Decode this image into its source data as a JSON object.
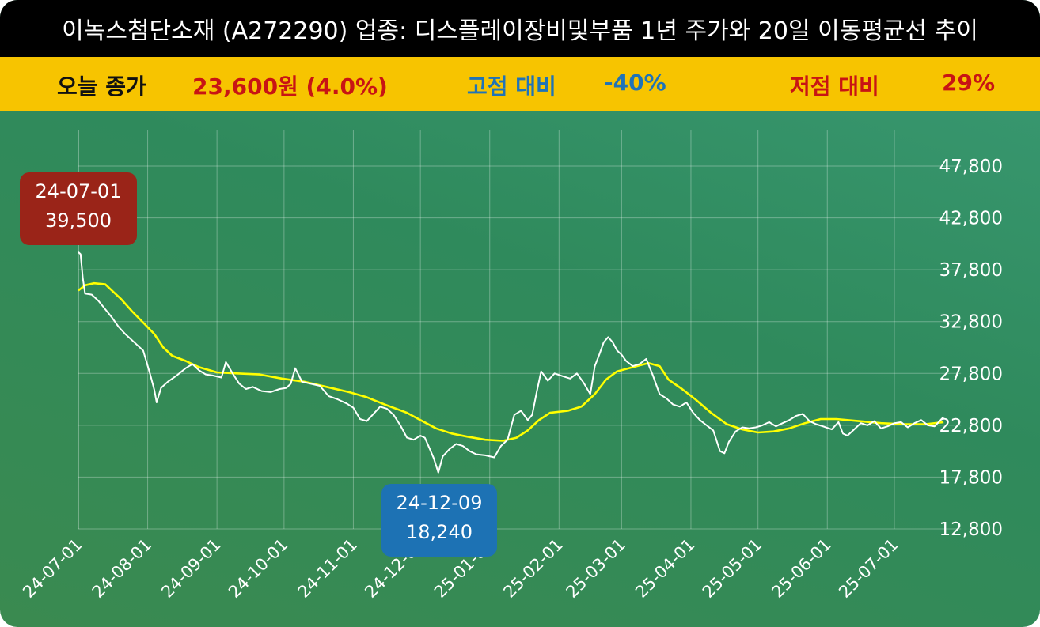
{
  "header": {
    "title": "이녹스첨단소재 (A272290) 업종: 디스플레이장비및부품  1년 주가와 20일 이동평균선 추이"
  },
  "info": {
    "close_label": "오늘 종가",
    "close_value": "23,600원 (4.0%)",
    "high_label": "고점 대비",
    "high_value": "-40%",
    "low_label": "저점 대비",
    "low_value": "29%"
  },
  "callouts": {
    "high": {
      "date": "24-07-01",
      "value": "39,500"
    },
    "low": {
      "date": "24-12-09",
      "value": "18,240"
    }
  },
  "colors": {
    "title_bg": "#000000",
    "info_bg": "#f7c400",
    "chart_bg": "#2f8a5c",
    "price_line": "#ffffff",
    "ma_line": "#ffff00",
    "high_callout": "#9a2418",
    "low_callout": "#1d72b4"
  },
  "chart_data": {
    "type": "line",
    "title": "이녹스첨단소재 (A272290) 업종: 디스플레이장비및부품  1년 주가와 20일 이동평균선 추이",
    "xlabel": "",
    "ylabel": "",
    "x_range": [
      "2024-07-01",
      "2025-07-23"
    ],
    "ylim": [
      12800,
      47800
    ],
    "yticks": [
      12800,
      17800,
      22800,
      27800,
      32800,
      37800,
      42800,
      47800
    ],
    "ytick_labels": [
      "12,800",
      "17,800",
      "22,800",
      "27,800",
      "32,800",
      "37,800",
      "42,800",
      "47,800"
    ],
    "xticks": [
      "2024-07-01",
      "2024-08-01",
      "2024-09-01",
      "2024-10-01",
      "2024-11-01",
      "2024-12-01",
      "2025-01-01",
      "2025-02-01",
      "2025-03-01",
      "2025-04-01",
      "2025-05-01",
      "2025-06-01",
      "2025-07-01"
    ],
    "xtick_labels": [
      "24-07-01",
      "24-08-01",
      "24-09-01",
      "24-10-01",
      "24-11-01",
      "24-12-01",
      "25-01-01",
      "25-02-01",
      "25-03-01",
      "25-04-01",
      "25-05-01",
      "25-06-01",
      "25-07-01"
    ],
    "grid": true,
    "series": [
      {
        "color": "#ffffff",
        "points": [
          [
            "2024-07-01",
            39500
          ],
          [
            "2024-07-02",
            39300
          ],
          [
            "2024-07-03",
            37000
          ],
          [
            "2024-07-04",
            35500
          ],
          [
            "2024-07-07",
            35400
          ],
          [
            "2024-07-10",
            34800
          ],
          [
            "2024-07-13",
            34000
          ],
          [
            "2024-07-16",
            33200
          ],
          [
            "2024-07-19",
            32300
          ],
          [
            "2024-07-22",
            31600
          ],
          [
            "2024-07-25",
            31000
          ],
          [
            "2024-07-28",
            30400
          ],
          [
            "2024-07-30",
            30000
          ],
          [
            "2024-08-02",
            27800
          ],
          [
            "2024-08-04",
            26200
          ],
          [
            "2024-08-05",
            25000
          ],
          [
            "2024-08-07",
            26400
          ],
          [
            "2024-08-10",
            27000
          ],
          [
            "2024-08-14",
            27600
          ],
          [
            "2024-08-18",
            28300
          ],
          [
            "2024-08-21",
            28700
          ],
          [
            "2024-08-24",
            28100
          ],
          [
            "2024-08-27",
            27700
          ],
          [
            "2024-08-30",
            27600
          ],
          [
            "2024-09-03",
            27400
          ],
          [
            "2024-09-05",
            28900
          ],
          [
            "2024-09-08",
            27800
          ],
          [
            "2024-09-11",
            26800
          ],
          [
            "2024-09-14",
            26300
          ],
          [
            "2024-09-17",
            26500
          ],
          [
            "2024-09-21",
            26100
          ],
          [
            "2024-09-25",
            26000
          ],
          [
            "2024-09-29",
            26300
          ],
          [
            "2024-10-02",
            26400
          ],
          [
            "2024-10-04",
            26800
          ],
          [
            "2024-10-06",
            28300
          ],
          [
            "2024-10-09",
            27000
          ],
          [
            "2024-10-13",
            26800
          ],
          [
            "2024-10-17",
            26600
          ],
          [
            "2024-10-21",
            25600
          ],
          [
            "2024-10-25",
            25300
          ],
          [
            "2024-10-29",
            24900
          ],
          [
            "2024-11-01",
            24500
          ],
          [
            "2024-11-04",
            23400
          ],
          [
            "2024-11-07",
            23200
          ],
          [
            "2024-11-10",
            23900
          ],
          [
            "2024-11-13",
            24600
          ],
          [
            "2024-11-16",
            24400
          ],
          [
            "2024-11-19",
            23800
          ],
          [
            "2024-11-22",
            22800
          ],
          [
            "2024-11-25",
            21600
          ],
          [
            "2024-11-28",
            21400
          ],
          [
            "2024-12-01",
            21800
          ],
          [
            "2024-12-03",
            21600
          ],
          [
            "2024-12-05",
            20600
          ],
          [
            "2024-12-07",
            19600
          ],
          [
            "2024-12-09",
            18240
          ],
          [
            "2024-12-11",
            19800
          ],
          [
            "2024-12-14",
            20500
          ],
          [
            "2024-12-17",
            21000
          ],
          [
            "2024-12-20",
            20800
          ],
          [
            "2024-12-23",
            20300
          ],
          [
            "2024-12-26",
            20000
          ],
          [
            "2024-12-30",
            19900
          ],
          [
            "2025-01-03",
            19700
          ],
          [
            "2025-01-06",
            20800
          ],
          [
            "2025-01-09",
            21400
          ],
          [
            "2025-01-12",
            23800
          ],
          [
            "2025-01-15",
            24200
          ],
          [
            "2025-01-18",
            23300
          ],
          [
            "2025-01-20",
            23800
          ],
          [
            "2025-01-22",
            26000
          ],
          [
            "2025-01-24",
            28000
          ],
          [
            "2025-01-27",
            27100
          ],
          [
            "2025-01-30",
            27800
          ],
          [
            "2025-02-03",
            27500
          ],
          [
            "2025-02-06",
            27300
          ],
          [
            "2025-02-09",
            27800
          ],
          [
            "2025-02-12",
            26900
          ],
          [
            "2025-02-15",
            25800
          ],
          [
            "2025-02-17",
            28500
          ],
          [
            "2025-02-19",
            29600
          ],
          [
            "2025-02-21",
            30800
          ],
          [
            "2025-02-23",
            31300
          ],
          [
            "2025-02-25",
            30800
          ],
          [
            "2025-02-27",
            30000
          ],
          [
            "2025-03-01",
            29600
          ],
          [
            "2025-03-03",
            29000
          ],
          [
            "2025-03-06",
            28500
          ],
          [
            "2025-03-09",
            28700
          ],
          [
            "2025-03-12",
            29200
          ],
          [
            "2025-03-15",
            27600
          ],
          [
            "2025-03-18",
            25800
          ],
          [
            "2025-03-21",
            25400
          ],
          [
            "2025-03-24",
            24800
          ],
          [
            "2025-03-27",
            24600
          ],
          [
            "2025-03-30",
            25000
          ],
          [
            "2025-04-02",
            24000
          ],
          [
            "2025-04-05",
            23300
          ],
          [
            "2025-04-08",
            22800
          ],
          [
            "2025-04-11",
            22300
          ],
          [
            "2025-04-14",
            20300
          ],
          [
            "2025-04-16",
            20100
          ],
          [
            "2025-04-18",
            21200
          ],
          [
            "2025-04-21",
            22200
          ],
          [
            "2025-04-24",
            22600
          ],
          [
            "2025-04-27",
            22500
          ],
          [
            "2025-04-30",
            22600
          ],
          [
            "2025-05-03",
            22800
          ],
          [
            "2025-05-06",
            23100
          ],
          [
            "2025-05-09",
            22700
          ],
          [
            "2025-05-12",
            23000
          ],
          [
            "2025-05-15",
            23300
          ],
          [
            "2025-05-18",
            23700
          ],
          [
            "2025-05-21",
            23900
          ],
          [
            "2025-05-24",
            23200
          ],
          [
            "2025-05-27",
            22900
          ],
          [
            "2025-05-30",
            22700
          ],
          [
            "2025-06-03",
            22400
          ],
          [
            "2025-06-06",
            23100
          ],
          [
            "2025-06-08",
            22000
          ],
          [
            "2025-06-10",
            21800
          ],
          [
            "2025-06-13",
            22400
          ],
          [
            "2025-06-16",
            23000
          ],
          [
            "2025-06-19",
            22800
          ],
          [
            "2025-06-22",
            23200
          ],
          [
            "2025-06-25",
            22500
          ],
          [
            "2025-06-28",
            22700
          ],
          [
            "2025-07-01",
            23000
          ],
          [
            "2025-07-04",
            23100
          ],
          [
            "2025-07-07",
            22600
          ],
          [
            "2025-07-10",
            23000
          ],
          [
            "2025-07-13",
            23300
          ],
          [
            "2025-07-16",
            22800
          ],
          [
            "2025-07-19",
            22700
          ],
          [
            "2025-07-23",
            23600
          ]
        ]
      },
      {
        "color": "#ffff00",
        "points": [
          [
            "2024-07-01",
            35800
          ],
          [
            "2024-07-04",
            36300
          ],
          [
            "2024-07-08",
            36500
          ],
          [
            "2024-07-13",
            36400
          ],
          [
            "2024-07-16",
            35800
          ],
          [
            "2024-07-20",
            35000
          ],
          [
            "2024-07-25",
            33800
          ],
          [
            "2024-07-30",
            32700
          ],
          [
            "2024-08-04",
            31600
          ],
          [
            "2024-08-08",
            30300
          ],
          [
            "2024-08-12",
            29500
          ],
          [
            "2024-08-18",
            29000
          ],
          [
            "2024-08-24",
            28400
          ],
          [
            "2024-09-01",
            27900
          ],
          [
            "2024-09-10",
            27800
          ],
          [
            "2024-09-20",
            27700
          ],
          [
            "2024-09-30",
            27300
          ],
          [
            "2024-10-10",
            27000
          ],
          [
            "2024-10-20",
            26500
          ],
          [
            "2024-10-30",
            26000
          ],
          [
            "2024-11-07",
            25500
          ],
          [
            "2024-11-15",
            24800
          ],
          [
            "2024-11-25",
            24000
          ],
          [
            "2024-12-01",
            23300
          ],
          [
            "2024-12-08",
            22500
          ],
          [
            "2024-12-15",
            22000
          ],
          [
            "2024-12-22",
            21700
          ],
          [
            "2024-12-30",
            21400
          ],
          [
            "2025-01-07",
            21300
          ],
          [
            "2025-01-13",
            21600
          ],
          [
            "2025-01-18",
            22300
          ],
          [
            "2025-01-23",
            23300
          ],
          [
            "2025-01-28",
            24000
          ],
          [
            "2025-02-05",
            24200
          ],
          [
            "2025-02-11",
            24600
          ],
          [
            "2025-02-17",
            25800
          ],
          [
            "2025-02-22",
            27200
          ],
          [
            "2025-02-27",
            28000
          ],
          [
            "2025-03-06",
            28400
          ],
          [
            "2025-03-13",
            28800
          ],
          [
            "2025-03-18",
            28500
          ],
          [
            "2025-03-22",
            27200
          ],
          [
            "2025-03-28",
            26300
          ],
          [
            "2025-04-03",
            25300
          ],
          [
            "2025-04-10",
            24000
          ],
          [
            "2025-04-17",
            22900
          ],
          [
            "2025-04-24",
            22400
          ],
          [
            "2025-05-01",
            22100
          ],
          [
            "2025-05-08",
            22200
          ],
          [
            "2025-05-15",
            22500
          ],
          [
            "2025-05-22",
            23000
          ],
          [
            "2025-05-29",
            23400
          ],
          [
            "2025-06-05",
            23400
          ],
          [
            "2025-06-15",
            23200
          ],
          [
            "2025-06-25",
            23000
          ],
          [
            "2025-07-05",
            22900
          ],
          [
            "2025-07-15",
            22900
          ],
          [
            "2025-07-23",
            23100
          ]
        ]
      }
    ]
  }
}
